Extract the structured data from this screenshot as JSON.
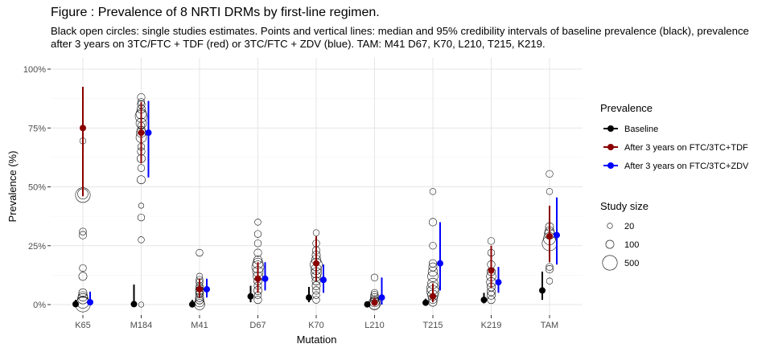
{
  "title": "Figure : Prevalence of 8 NRTI DRMs by first-line regimen.",
  "subtitle": "Black open circles: single studies estimates. Points and vertical lines: median and 95% credibility intervals of baseline prevalence (black), prevalence after 3 years on 3TC/FTC + TDF (red) or 3TC/FTC + ZDV (blue). TAM: M41 D67, K70, L210, T215, K219.",
  "chart_data": {
    "type": "scatter",
    "xlabel": "Mutation",
    "ylabel": "Prevalence (%)",
    "categories": [
      "K65",
      "M184",
      "M41",
      "D67",
      "K70",
      "L210",
      "T215",
      "K219",
      "TAM"
    ],
    "y_ticks": [
      "0%",
      "25%",
      "50%",
      "75%",
      "100%"
    ],
    "ylim": [
      0,
      100
    ],
    "grid": true,
    "legend_placement": "right",
    "series": [
      {
        "name": "Baseline",
        "color": "#000000",
        "median": [
          0.2,
          0.2,
          0.1,
          3.5,
          3,
          0.1,
          0.8,
          2,
          6
        ],
        "lower": [
          0,
          0,
          0,
          1,
          1,
          0,
          0,
          0.5,
          2
        ],
        "upper": [
          2,
          8.5,
          2,
          8,
          7.5,
          1,
          2.5,
          5,
          14
        ]
      },
      {
        "name": "After 3 years on FTC/3TC+TDF",
        "color": "#8b0000",
        "median": [
          75,
          73,
          6.5,
          11,
          17.5,
          0.8,
          3.5,
          14.5,
          29
        ],
        "lower": [
          46,
          60,
          3,
          5,
          10,
          0.2,
          1,
          7,
          18
        ],
        "upper": [
          92.5,
          86,
          11,
          18,
          29,
          3,
          9,
          25,
          42
        ]
      },
      {
        "name": "After 3 years on FTC/3TC+ZDV",
        "color": "#0000ff",
        "median": [
          1,
          73,
          6.5,
          11,
          10.5,
          3,
          17.5,
          9.5,
          29.5
        ],
        "lower": [
          0,
          54,
          3,
          6,
          5,
          0,
          6,
          5,
          17
        ],
        "upper": [
          5.5,
          86.5,
          11,
          18,
          17,
          11.5,
          35,
          16,
          45.5
        ]
      }
    ],
    "study_estimates": [
      {
        "category": "K65",
        "points": [
          [
            0,
            500
          ],
          [
            1,
            300
          ],
          [
            2.5,
            200
          ],
          [
            3.5,
            150
          ],
          [
            5,
            100
          ],
          [
            12,
            100
          ],
          [
            15.5,
            60
          ],
          [
            29.5,
            80
          ],
          [
            31,
            60
          ],
          [
            46.5,
            500
          ],
          [
            47,
            200
          ],
          [
            69.5,
            40
          ]
        ]
      },
      {
        "category": "M184",
        "points": [
          [
            0,
            20
          ],
          [
            27.5,
            40
          ],
          [
            37,
            60
          ],
          [
            42,
            20
          ],
          [
            53,
            100
          ],
          [
            58,
            60
          ],
          [
            62,
            100
          ],
          [
            65,
            80
          ],
          [
            67,
            60
          ],
          [
            71,
            200
          ],
          [
            73,
            150
          ],
          [
            74,
            100
          ],
          [
            76,
            60
          ],
          [
            77,
            200
          ],
          [
            80,
            300
          ],
          [
            81,
            200
          ],
          [
            83,
            100
          ],
          [
            85,
            80
          ],
          [
            86,
            60
          ],
          [
            88,
            80
          ]
        ]
      },
      {
        "category": "M41",
        "points": [
          [
            0,
            200
          ],
          [
            1,
            150
          ],
          [
            2,
            100
          ],
          [
            3,
            100
          ],
          [
            4.5,
            80
          ],
          [
            5,
            60
          ],
          [
            6,
            100
          ],
          [
            7,
            80
          ],
          [
            8,
            60
          ],
          [
            9.5,
            60
          ],
          [
            10.5,
            60
          ],
          [
            12,
            40
          ],
          [
            22,
            60
          ]
        ]
      },
      {
        "category": "D67",
        "points": [
          [
            2,
            80
          ],
          [
            4,
            60
          ],
          [
            6,
            100
          ],
          [
            8,
            80
          ],
          [
            10,
            100
          ],
          [
            12,
            150
          ],
          [
            14,
            200
          ],
          [
            16,
            300
          ],
          [
            17.5,
            200
          ],
          [
            19,
            100
          ],
          [
            22,
            80
          ],
          [
            26,
            60
          ],
          [
            30,
            60
          ],
          [
            35,
            40
          ]
        ]
      },
      {
        "category": "K70",
        "points": [
          [
            2,
            60
          ],
          [
            4,
            60
          ],
          [
            6,
            80
          ],
          [
            8,
            100
          ],
          [
            10,
            100
          ],
          [
            12,
            150
          ],
          [
            13.5,
            200
          ],
          [
            15,
            200
          ],
          [
            17,
            300
          ],
          [
            19,
            150
          ],
          [
            21,
            100
          ],
          [
            23,
            80
          ],
          [
            26,
            60
          ],
          [
            30.5,
            40
          ]
        ]
      },
      {
        "category": "L210",
        "points": [
          [
            0,
            200
          ],
          [
            0.5,
            300
          ],
          [
            1,
            150
          ],
          [
            2,
            100
          ],
          [
            3,
            100
          ],
          [
            4,
            80
          ],
          [
            5,
            60
          ],
          [
            11.5,
            60
          ]
        ]
      },
      {
        "category": "T215",
        "points": [
          [
            1,
            100
          ],
          [
            2.5,
            150
          ],
          [
            4,
            200
          ],
          [
            5.5,
            300
          ],
          [
            7,
            300
          ],
          [
            9,
            200
          ],
          [
            12,
            200
          ],
          [
            14,
            150
          ],
          [
            16,
            100
          ],
          [
            17.5,
            80
          ],
          [
            25,
            60
          ],
          [
            35,
            80
          ],
          [
            48,
            40
          ]
        ]
      },
      {
        "category": "K219",
        "points": [
          [
            2,
            80
          ],
          [
            4,
            100
          ],
          [
            5.5,
            100
          ],
          [
            7.5,
            100
          ],
          [
            9.5,
            150
          ],
          [
            12,
            150
          ],
          [
            14,
            100
          ],
          [
            17,
            80
          ],
          [
            22,
            60
          ],
          [
            27,
            60
          ]
        ]
      },
      {
        "category": "TAM",
        "points": [
          [
            10,
            40
          ],
          [
            15,
            80
          ],
          [
            16,
            60
          ],
          [
            26,
            500
          ],
          [
            28,
            300
          ],
          [
            30,
            200
          ],
          [
            31,
            150
          ],
          [
            33,
            100
          ],
          [
            48,
            40
          ],
          [
            55.5,
            60
          ]
        ]
      }
    ],
    "legend": {
      "prevalence_title": "Prevalence",
      "size_title": "Study size",
      "size_entries": [
        20,
        100,
        500
      ]
    }
  }
}
